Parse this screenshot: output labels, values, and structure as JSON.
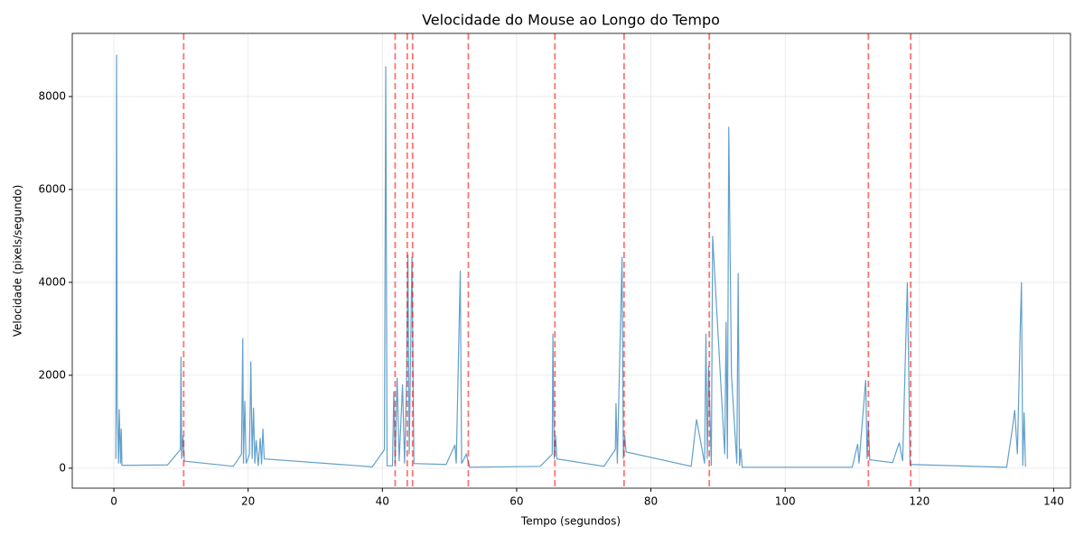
{
  "chart_data": {
    "type": "line",
    "title": "Velocidade do Mouse ao Longo do Tempo",
    "x_label": "Tempo (segundos)",
    "y_label": "Velocidade (pixels/segundo)",
    "xlim": [
      -6.2,
      142.5
    ],
    "ylim": [
      -430,
      9360
    ],
    "xticks": [
      0,
      20,
      40,
      60,
      80,
      100,
      120,
      140
    ],
    "yticks": [
      0,
      2000,
      4000,
      6000,
      8000
    ],
    "grid": true,
    "series": [
      {
        "color": "#1f77b4",
        "x": [
          0.3,
          0.4,
          0.5,
          0.7,
          0.8,
          1.0,
          1.1,
          1.2,
          8.0,
          9.9,
          10.0,
          10.1,
          10.3,
          10.5,
          17.8,
          19.0,
          19.2,
          19.3,
          19.5,
          19.7,
          20.2,
          20.4,
          20.6,
          20.8,
          21.0,
          21.2,
          21.5,
          21.8,
          22.0,
          22.2,
          22.4,
          38.5,
          40.3,
          40.5,
          40.7,
          41.5,
          41.7,
          41.9,
          42.2,
          42.5,
          43.0,
          43.3,
          43.6,
          43.8,
          44.0,
          44.4,
          44.7,
          49.5,
          50.8,
          51.0,
          51.6,
          51.8,
          52.5,
          53.0,
          63.5,
          65.3,
          65.4,
          65.6,
          65.8,
          66.0,
          73.0,
          74.7,
          74.8,
          75.0,
          75.7,
          75.9,
          76.1,
          76.3,
          86.0,
          86.8,
          88.0,
          88.2,
          88.4,
          88.6,
          89.0,
          89.2,
          89.5,
          91.0,
          91.2,
          91.4,
          91.6,
          92.0,
          92.8,
          93.0,
          93.2,
          93.4,
          93.6,
          110.0,
          110.8,
          111.0,
          112.0,
          112.2,
          112.4,
          112.6,
          116.0,
          117.0,
          117.5,
          118.2,
          118.4,
          118.6,
          133.0,
          133.8,
          134.2,
          134.6,
          135.0,
          135.2,
          135.4,
          135.6,
          135.8
        ],
        "values": [
          200,
          8900,
          1300,
          100,
          1270,
          100,
          850,
          60,
          70,
          400,
          2400,
          200,
          700,
          150,
          40,
          300,
          2800,
          100,
          1450,
          100,
          300,
          2300,
          200,
          1300,
          100,
          600,
          50,
          650,
          80,
          850,
          200,
          30,
          400,
          8650,
          50,
          50,
          1650,
          100,
          1950,
          150,
          1800,
          100,
          1800,
          4600,
          300,
          4550,
          100,
          80,
          500,
          100,
          4250,
          100,
          300,
          20,
          40,
          300,
          2900,
          200,
          700,
          200,
          40,
          400,
          1400,
          100,
          4550,
          200,
          700,
          350,
          40,
          1050,
          100,
          2900,
          200,
          2200,
          50,
          5000,
          4200,
          300,
          3150,
          200,
          7350,
          2000,
          100,
          4200,
          50,
          420,
          20,
          20,
          520,
          100,
          1900,
          200,
          1000,
          180,
          120,
          550,
          150,
          4000,
          2200,
          80,
          20,
          800,
          1250,
          300,
          2900,
          4000,
          50,
          1200,
          30
        ]
      }
    ],
    "vlines": {
      "color": "#ff0000",
      "x": [
        10.4,
        41.9,
        43.7,
        44.5,
        52.8,
        65.7,
        76.0,
        88.7,
        112.4,
        118.7
      ]
    }
  }
}
